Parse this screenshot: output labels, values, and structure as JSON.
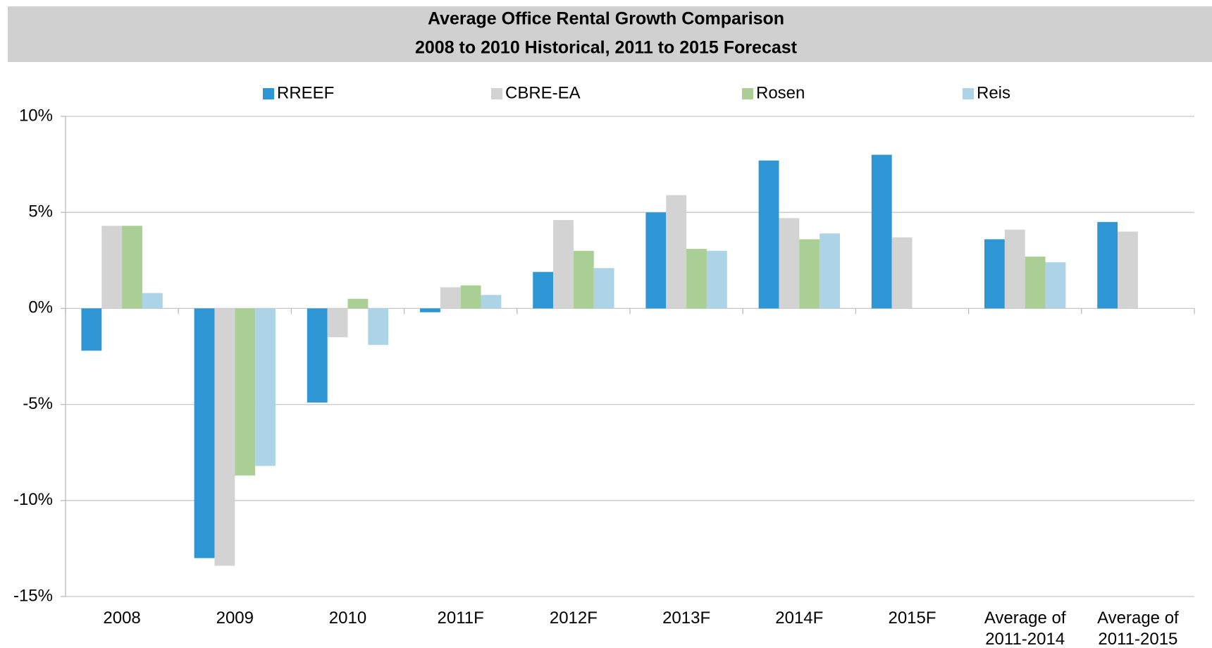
{
  "chart_data": {
    "type": "bar",
    "title": "Average Office Rental Growth Comparison",
    "subtitle": "2008 to 2010 Historical, 2011 to 2015 Forecast",
    "categories": [
      "2008",
      "2009",
      "2010",
      "2011F",
      "2012F",
      "2013F",
      "2014F",
      "2015F",
      "Average of 2011-2014",
      "Average of 2011-2015"
    ],
    "series": [
      {
        "name": "RREEF",
        "color": "#2e96d4",
        "values": [
          -2.2,
          -13.0,
          -4.9,
          -0.2,
          1.9,
          5.0,
          7.7,
          8.0,
          3.6,
          4.5
        ]
      },
      {
        "name": "CBRE-EA",
        "color": "#d3d3d3",
        "values": [
          4.3,
          -13.4,
          -1.5,
          1.1,
          4.6,
          5.9,
          4.7,
          3.7,
          4.1,
          4.0
        ]
      },
      {
        "name": "Rosen",
        "color": "#a9cf95",
        "values": [
          4.3,
          -8.7,
          0.5,
          1.2,
          3.0,
          3.1,
          3.6,
          null,
          2.7,
          null
        ]
      },
      {
        "name": "Reis",
        "color": "#acd3e6",
        "values": [
          0.8,
          -8.2,
          -1.9,
          0.7,
          2.1,
          3.0,
          3.9,
          null,
          2.4,
          null
        ]
      }
    ],
    "ylim": [
      -15,
      10
    ],
    "yticks": [
      {
        "value": -15,
        "label": "-15%"
      },
      {
        "value": -10,
        "label": "-10%"
      },
      {
        "value": -5,
        "label": "-5%"
      },
      {
        "value": 0,
        "label": "0%"
      },
      {
        "value": 5,
        "label": "5%"
      },
      {
        "value": 10,
        "label": "10%"
      }
    ],
    "grid": true,
    "legend": "top"
  }
}
